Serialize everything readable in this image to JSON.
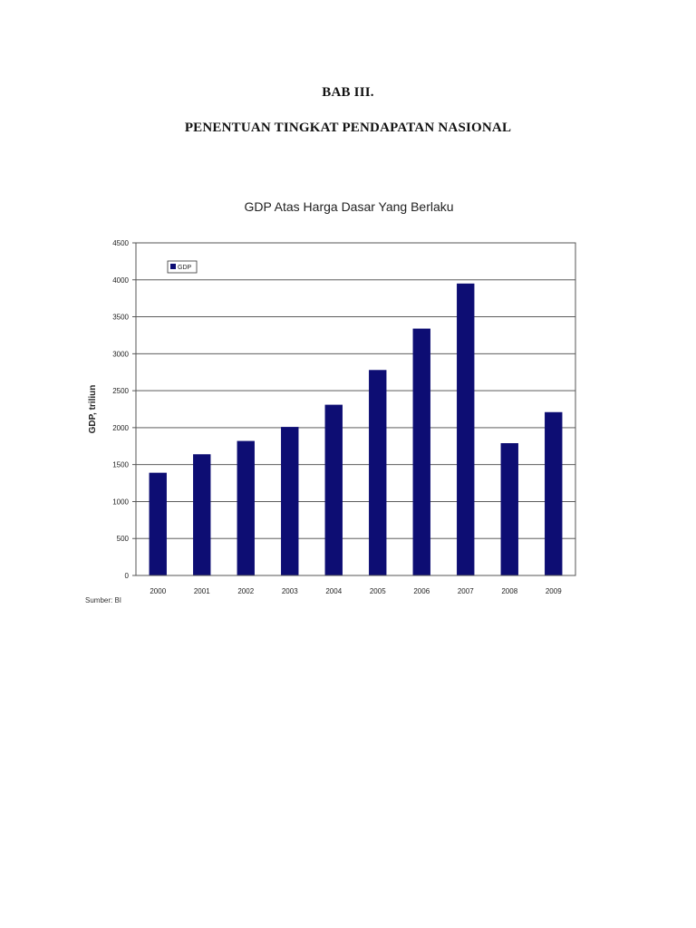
{
  "document": {
    "chapter_label": "BAB III.",
    "chapter_title": "PENENTUAN TINGKAT PENDAPATAN NASIONAL"
  },
  "colors": {
    "bar": "#0d0d73",
    "gridline": "#444444",
    "text": "#222222"
  },
  "chart_data": {
    "type": "bar",
    "title": "GDP Atas Harga Dasar Yang Berlaku",
    "xlabel": "",
    "ylabel": "GDP, triliun",
    "categories": [
      "2000",
      "2001",
      "2002",
      "2003",
      "2004",
      "2005",
      "2006",
      "2007",
      "2008",
      "2009"
    ],
    "series": [
      {
        "name": "GDP",
        "values": [
          1390,
          1640,
          1820,
          2010,
          2310,
          2780,
          3340,
          3950,
          1790,
          2210
        ]
      }
    ],
    "ylim": [
      0,
      4500
    ],
    "yticks": [
      "0",
      "500",
      "1000",
      "1500",
      "2000",
      "2500",
      "3000",
      "3500",
      "4000",
      "4500"
    ],
    "grid": true,
    "legend": "top-left",
    "source": "Sumber: BI"
  }
}
